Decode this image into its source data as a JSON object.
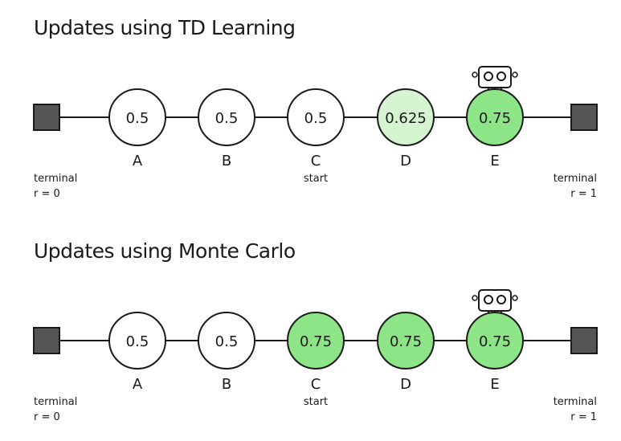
{
  "colors": {
    "line": "#1a1a1a",
    "terminal_fill": "#555555",
    "visited_fill": "#8ee587",
    "partial_fill": "#d4f5d0",
    "default_fill": "#ffffff"
  },
  "panels": [
    {
      "title": "Updates using TD Learning",
      "states": [
        {
          "label": "A",
          "value": "0.5",
          "fill": "default"
        },
        {
          "label": "B",
          "value": "0.5",
          "fill": "default"
        },
        {
          "label": "C",
          "value": "0.5",
          "fill": "default"
        },
        {
          "label": "D",
          "value": "0.625",
          "fill": "partial"
        },
        {
          "label": "E",
          "value": "0.75",
          "fill": "visited"
        }
      ],
      "start_caption": "start",
      "left_terminal": {
        "line1": "terminal",
        "line2": "r = 0"
      },
      "right_terminal": {
        "line1": "terminal",
        "line2": "r = 1"
      },
      "agent_icon": "robot-icon",
      "agent_state": "E"
    },
    {
      "title": "Updates using Monte Carlo",
      "states": [
        {
          "label": "A",
          "value": "0.5",
          "fill": "default"
        },
        {
          "label": "B",
          "value": "0.5",
          "fill": "default"
        },
        {
          "label": "C",
          "value": "0.75",
          "fill": "visited"
        },
        {
          "label": "D",
          "value": "0.75",
          "fill": "visited"
        },
        {
          "label": "E",
          "value": "0.75",
          "fill": "visited"
        }
      ],
      "start_caption": "start",
      "left_terminal": {
        "line1": "terminal",
        "line2": "r = 0"
      },
      "right_terminal": {
        "line1": "terminal",
        "line2": "r = 1"
      },
      "agent_icon": "robot-icon",
      "agent_state": "E"
    }
  ]
}
